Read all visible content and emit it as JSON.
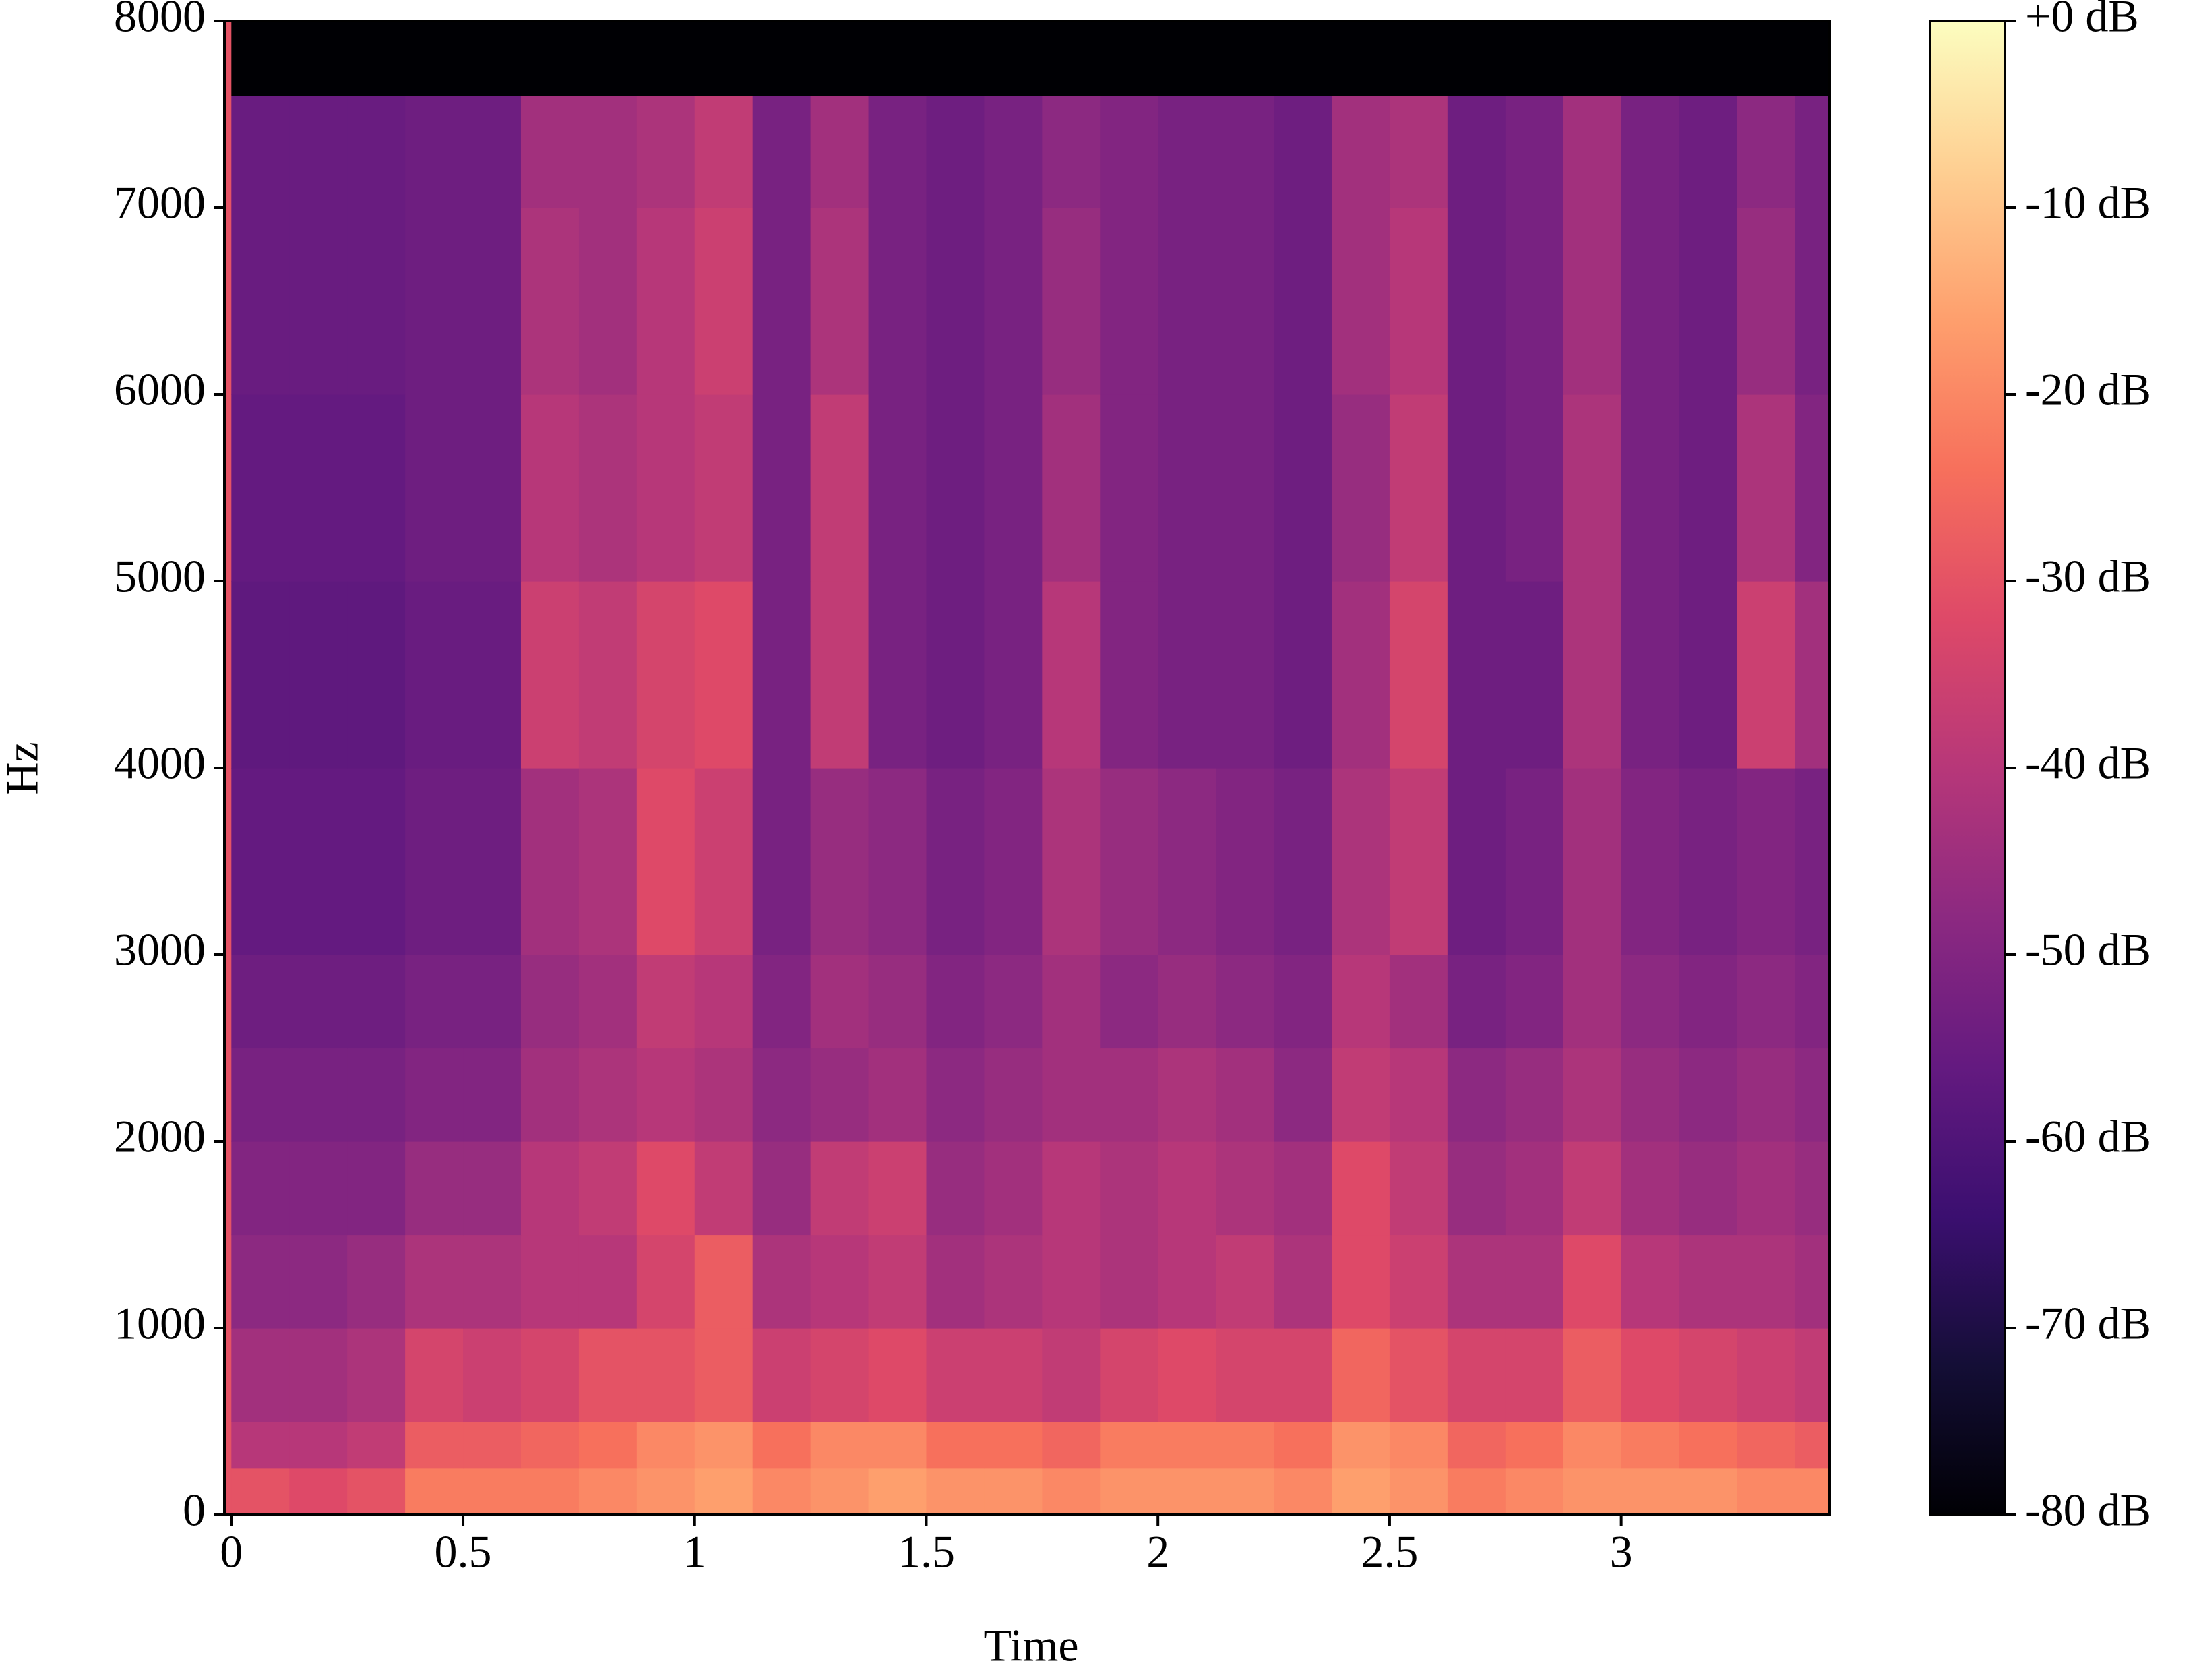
{
  "chart_data": {
    "type": "heatmap",
    "xlabel": "Time",
    "ylabel": "Hz",
    "colormap": "magma",
    "xlim": [
      -0.015,
      3.45
    ],
    "xticks": [
      0,
      0.5,
      1,
      1.5,
      2,
      2.5,
      3
    ],
    "ylim": [
      0,
      8000
    ],
    "yticks": [
      0,
      1000,
      2000,
      3000,
      4000,
      5000,
      6000,
      7000,
      8000
    ],
    "clim": [
      -80,
      0
    ],
    "cticks": [
      {
        "value": 0,
        "label": "+0 dB"
      },
      {
        "value": -10,
        "label": "-10 dB"
      },
      {
        "value": -20,
        "label": "-20 dB"
      },
      {
        "value": -30,
        "label": "-30 dB"
      },
      {
        "value": -40,
        "label": "-40 dB"
      },
      {
        "value": -50,
        "label": "-50 dB"
      },
      {
        "value": -60,
        "label": "-60 dB"
      },
      {
        "value": -70,
        "label": "-70 dB"
      },
      {
        "value": -80,
        "label": "-80 dB"
      }
    ],
    "x_edges": [
      0,
      0.125,
      0.25,
      0.375,
      0.5,
      0.625,
      0.75,
      0.875,
      1,
      1.125,
      1.25,
      1.375,
      1.5,
      1.625,
      1.75,
      1.875,
      2,
      2.125,
      2.25,
      2.375,
      2.5,
      2.625,
      2.75,
      2.875,
      3,
      3.125,
      3.25,
      3.375,
      3.45
    ],
    "y_edges": [
      0,
      250,
      500,
      1000,
      1500,
      2000,
      2500,
      3000,
      4000,
      5000,
      6000,
      7000,
      7600,
      8000
    ],
    "z": [
      [
        -30,
        -32,
        -30,
        -22,
        -22,
        -22,
        -20,
        -18,
        -16,
        -20,
        -18,
        -16,
        -18,
        -18,
        -20,
        -18,
        -18,
        -18,
        -20,
        -16,
        -18,
        -22,
        -20,
        -18,
        -18,
        -18,
        -20,
        -20
      ],
      [
        -40,
        -40,
        -38,
        -28,
        -28,
        -26,
        -24,
        -20,
        -18,
        -24,
        -20,
        -20,
        -24,
        -24,
        -26,
        -22,
        -22,
        -22,
        -24,
        -18,
        -20,
        -26,
        -24,
        -20,
        -22,
        -24,
        -26,
        -28
      ],
      [
        -44,
        -44,
        -42,
        -34,
        -36,
        -34,
        -30,
        -30,
        -28,
        -36,
        -34,
        -32,
        -36,
        -36,
        -38,
        -34,
        -32,
        -34,
        -34,
        -26,
        -30,
        -34,
        -34,
        -28,
        -32,
        -34,
        -36,
        -38
      ],
      [
        -48,
        -48,
        -46,
        -42,
        -42,
        -40,
        -40,
        -34,
        -28,
        -42,
        -40,
        -38,
        -44,
        -42,
        -40,
        -42,
        -40,
        -38,
        -42,
        -32,
        -36,
        -42,
        -42,
        -32,
        -40,
        -42,
        -42,
        -44
      ],
      [
        -50,
        -50,
        -50,
        -46,
        -46,
        -40,
        -38,
        -32,
        -38,
        -46,
        -38,
        -36,
        -46,
        -44,
        -40,
        -42,
        -40,
        -42,
        -44,
        -32,
        -38,
        -46,
        -44,
        -38,
        -44,
        -46,
        -44,
        -46
      ],
      [
        -52,
        -52,
        -52,
        -50,
        -50,
        -44,
        -42,
        -40,
        -42,
        -48,
        -46,
        -44,
        -48,
        -46,
        -44,
        -44,
        -42,
        -44,
        -48,
        -38,
        -40,
        -48,
        -46,
        -42,
        -46,
        -48,
        -46,
        -48
      ],
      [
        -54,
        -54,
        -54,
        -52,
        -52,
        -46,
        -44,
        -38,
        -40,
        -50,
        -44,
        -46,
        -50,
        -48,
        -44,
        -48,
        -46,
        -48,
        -50,
        -40,
        -44,
        -52,
        -50,
        -44,
        -48,
        -50,
        -48,
        -50
      ],
      [
        -56,
        -56,
        -56,
        -54,
        -54,
        -44,
        -42,
        -32,
        -36,
        -52,
        -46,
        -48,
        -52,
        -50,
        -42,
        -46,
        -48,
        -50,
        -52,
        -42,
        -38,
        -54,
        -52,
        -44,
        -50,
        -52,
        -50,
        -52
      ],
      [
        -57,
        -57,
        -57,
        -55,
        -55,
        -36,
        -38,
        -34,
        -32,
        -52,
        -38,
        -52,
        -54,
        -52,
        -40,
        -50,
        -52,
        -52,
        -54,
        -44,
        -34,
        -54,
        -54,
        -42,
        -52,
        -54,
        -36,
        -44
      ],
      [
        -56,
        -56,
        -56,
        -54,
        -54,
        -40,
        -42,
        -40,
        -38,
        -52,
        -38,
        -52,
        -54,
        -52,
        -44,
        -50,
        -52,
        -52,
        -54,
        -46,
        -38,
        -54,
        -52,
        -42,
        -52,
        -54,
        -42,
        -50
      ],
      [
        -55,
        -55,
        -55,
        -54,
        -54,
        -42,
        -44,
        -40,
        -36,
        -52,
        -42,
        -52,
        -54,
        -52,
        -46,
        -50,
        -52,
        -52,
        -54,
        -44,
        -40,
        -54,
        -52,
        -44,
        -52,
        -54,
        -46,
        -52
      ],
      [
        -55,
        -55,
        -55,
        -54,
        -54,
        -44,
        -44,
        -42,
        -38,
        -52,
        -44,
        -52,
        -54,
        -52,
        -48,
        -50,
        -52,
        -52,
        -54,
        -44,
        -42,
        -54,
        -52,
        -44,
        -52,
        -54,
        -48,
        -52
      ],
      [
        -80,
        -80,
        -80,
        -80,
        -80,
        -80,
        -80,
        -80,
        -80,
        -80,
        -80,
        -80,
        -80,
        -80,
        -80,
        -80,
        -80,
        -80,
        -80,
        -80,
        -80,
        -80,
        -80,
        -80,
        -80,
        -80,
        -80,
        -80
      ]
    ]
  }
}
